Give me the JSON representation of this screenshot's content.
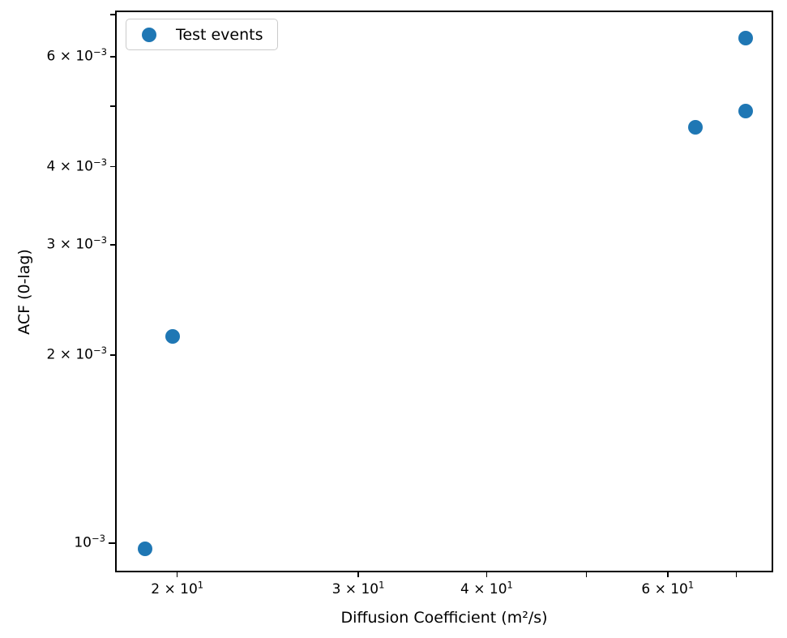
{
  "figure": {
    "background": "#ffffff",
    "axis_color": "#000000"
  },
  "chart_data": {
    "type": "scatter",
    "title": "",
    "xlabel": "Diffusion Coefficient (m²/s)",
    "ylabel": "ACF (0-lag)",
    "xscale": "log",
    "yscale": "log",
    "xlim": [
      17.4,
      76.0
    ],
    "ylim": [
      0.000898,
      0.00711
    ],
    "grid": false,
    "marker_color": "#1f77b4",
    "legend": {
      "label": "Test events",
      "position": "upper-left"
    },
    "series": [
      {
        "name": "Test events",
        "x": [
          18.6,
          19.8,
          63.8,
          71.4,
          71.4
        ],
        "y": [
          0.00098,
          0.00214,
          0.00463,
          0.00491,
          0.00643
        ]
      }
    ],
    "x_ticks": [
      {
        "value": 20,
        "mantissa": "2",
        "exponent": "1",
        "labeled": true,
        "major": false
      },
      {
        "value": 30,
        "mantissa": "3",
        "exponent": "1",
        "labeled": true,
        "major": false
      },
      {
        "value": 40,
        "mantissa": "4",
        "exponent": "1",
        "labeled": true,
        "major": false
      },
      {
        "value": 50,
        "mantissa": "",
        "exponent": "",
        "labeled": false,
        "major": false
      },
      {
        "value": 60,
        "mantissa": "6",
        "exponent": "1",
        "labeled": true,
        "major": false
      },
      {
        "value": 70,
        "mantissa": "",
        "exponent": "",
        "labeled": false,
        "major": false
      }
    ],
    "y_ticks": [
      {
        "value": 0.001,
        "mantissa": "",
        "exponent": "−3",
        "labeled": true,
        "major": true
      },
      {
        "value": 0.002,
        "mantissa": "2",
        "exponent": "−3",
        "labeled": true,
        "major": false
      },
      {
        "value": 0.003,
        "mantissa": "3",
        "exponent": "−3",
        "labeled": true,
        "major": false
      },
      {
        "value": 0.004,
        "mantissa": "4",
        "exponent": "−3",
        "labeled": true,
        "major": false
      },
      {
        "value": 0.005,
        "mantissa": "",
        "exponent": "",
        "labeled": false,
        "major": false
      },
      {
        "value": 0.006,
        "mantissa": "6",
        "exponent": "−3",
        "labeled": true,
        "major": false
      },
      {
        "value": 0.007,
        "mantissa": "",
        "exponent": "",
        "labeled": false,
        "major": false
      }
    ]
  }
}
